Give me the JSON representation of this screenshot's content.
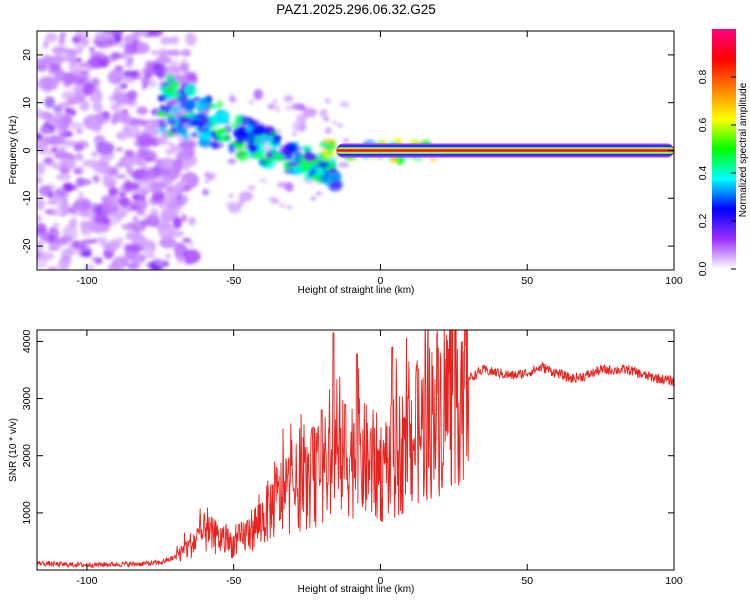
{
  "figure_title": "PAZ1.2025.296.06.32.G25",
  "chart_data": [
    {
      "type": "heatmap",
      "title": "PAZ1.2025.296.06.32.G25",
      "xlabel": "Height of straight line (km)",
      "ylabel": "Frequency (Hz)",
      "xlim": [
        -117,
        100
      ],
      "ylim": [
        -25,
        25
      ],
      "xticks": [
        -100,
        -50,
        0,
        50,
        100
      ],
      "yticks": [
        20,
        10,
        0,
        -10,
        -20
      ],
      "xtick_labels": [
        "-100",
        "-50",
        "0",
        "50",
        "100"
      ],
      "ytick_labels": [
        "20",
        "10",
        "0",
        "-10",
        "-20"
      ],
      "colorbar": {
        "label": "Normalized spectral amplitude",
        "range": [
          0,
          1
        ],
        "ticks": [
          "0.0",
          "0.2",
          "0.4",
          "0.6",
          "0.8"
        ],
        "colors": [
          "#ffffff",
          "#9b30ff",
          "#0000ff",
          "#00ffff",
          "#00ff00",
          "#ffff00",
          "#ff8000",
          "#ff0000",
          "#ff0080"
        ]
      },
      "features": {
        "carrier_line": {
          "x_range": [
            -15,
            100
          ],
          "frequency_hz": 0,
          "amplitude": 1.0
        },
        "transition_track": {
          "x_range": [
            -75,
            -15
          ],
          "frequency_hz_range": [
            10,
            -5
          ],
          "amplitude_range": [
            0.15,
            0.5
          ]
        },
        "noise_region": {
          "x_range": [
            -117,
            -70
          ],
          "frequency_hz_range": [
            -25,
            25
          ],
          "amplitude_range": [
            0.05,
            0.15
          ]
        }
      }
    },
    {
      "type": "line",
      "xlabel": "Height of straight line (km)",
      "ylabel": "SNR (10 * v/v)",
      "xlim": [
        -117,
        100
      ],
      "ylim": [
        0,
        4200
      ],
      "xticks": [
        -100,
        -50,
        0,
        50,
        100
      ],
      "yticks": [
        1000,
        2000,
        3000,
        4000
      ],
      "xtick_labels": [
        "-100",
        "-50",
        "0",
        "50",
        "100"
      ],
      "ytick_labels": [
        "1000",
        "2000",
        "3000",
        "4000"
      ],
      "series": [
        {
          "name": "SNR",
          "color": "#e8231e",
          "x": [
            -117,
            -110,
            -100,
            -90,
            -80,
            -75,
            -70,
            -65,
            -60,
            -55,
            -50,
            -45,
            -40,
            -35,
            -30,
            -25,
            -20,
            -15,
            -10,
            -5,
            0,
            5,
            10,
            15,
            20,
            25,
            30,
            35,
            40,
            45,
            50,
            55,
            60,
            65,
            70,
            75,
            80,
            85,
            90,
            95,
            100
          ],
          "y": [
            120,
            100,
            90,
            100,
            110,
            130,
            220,
            420,
            650,
            550,
            450,
            650,
            900,
            1250,
            1400,
            1550,
            1700,
            1900,
            2000,
            1900,
            1750,
            1950,
            2250,
            2500,
            2850,
            3150,
            3350,
            3500,
            3450,
            3400,
            3450,
            3550,
            3450,
            3350,
            3400,
            3500,
            3500,
            3500,
            3400,
            3350,
            3300
          ]
        }
      ],
      "spikes": [
        {
          "x": -16,
          "y": 4150
        },
        {
          "x": -8,
          "y": 3780
        },
        {
          "x": 4,
          "y": 3900
        },
        {
          "x": -20,
          "y": 2800
        },
        {
          "x": -12,
          "y": 2900
        }
      ]
    }
  ]
}
